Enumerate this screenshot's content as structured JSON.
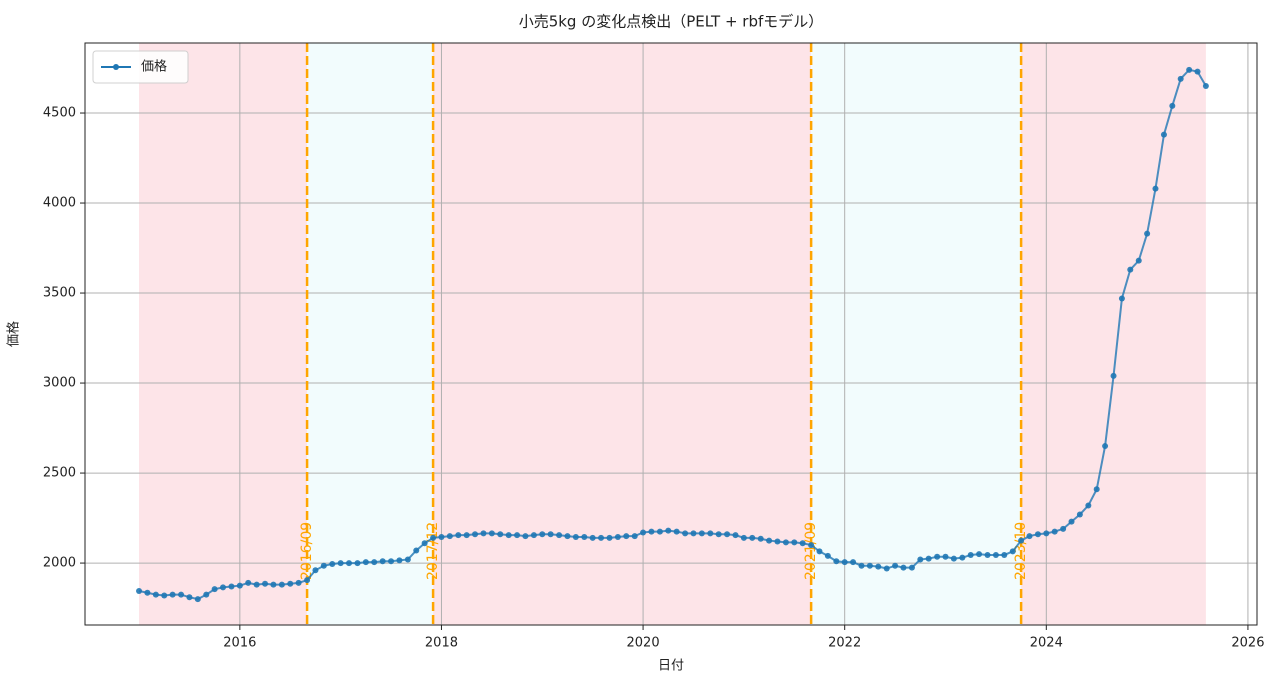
{
  "chart_data": {
    "type": "line",
    "title": "小売5kg の変化点検出（PELT + rbfモデル）",
    "x_label": "日付",
    "y_label": "価格",
    "x": [
      2015,
      2015.083,
      2015.167,
      2015.25,
      2015.333,
      2015.417,
      2015.5,
      2015.583,
      2015.667,
      2015.75,
      2015.833,
      2015.917,
      2016,
      2016.083,
      2016.167,
      2016.25,
      2016.333,
      2016.417,
      2016.5,
      2016.583,
      2016.667,
      2016.75,
      2016.833,
      2016.917,
      2017,
      2017.083,
      2017.167,
      2017.25,
      2017.333,
      2017.417,
      2017.5,
      2017.583,
      2017.667,
      2017.75,
      2017.833,
      2017.917,
      2018,
      2018.083,
      2018.167,
      2018.25,
      2018.333,
      2018.417,
      2018.5,
      2018.583,
      2018.667,
      2018.75,
      2018.833,
      2018.917,
      2019,
      2019.083,
      2019.167,
      2019.25,
      2019.333,
      2019.417,
      2019.5,
      2019.583,
      2019.667,
      2019.75,
      2019.833,
      2019.917,
      2020,
      2020.083,
      2020.167,
      2020.25,
      2020.333,
      2020.417,
      2020.5,
      2020.583,
      2020.667,
      2020.75,
      2020.833,
      2020.917,
      2021,
      2021.083,
      2021.167,
      2021.25,
      2021.333,
      2021.417,
      2021.5,
      2021.583,
      2021.667,
      2021.75,
      2021.833,
      2021.917,
      2022,
      2022.083,
      2022.167,
      2022.25,
      2022.333,
      2022.417,
      2022.5,
      2022.583,
      2022.667,
      2022.75,
      2022.833,
      2022.917,
      2023,
      2023.083,
      2023.167,
      2023.25,
      2023.333,
      2023.417,
      2023.5,
      2023.583,
      2023.667,
      2023.75,
      2023.833,
      2023.917,
      2024,
      2024.083,
      2024.167,
      2024.25,
      2024.333,
      2024.417,
      2024.5,
      2024.583,
      2024.667,
      2024.75,
      2024.833,
      2024.917,
      2025,
      2025.083,
      2025.167,
      2025.25,
      2025.333,
      2025.417,
      2025.5,
      2025.583
    ],
    "series": [
      {
        "name": "価格",
        "color": "#1f77b4",
        "values": [
          1845,
          1835,
          1825,
          1820,
          1825,
          1825,
          1810,
          1800,
          1825,
          1855,
          1865,
          1870,
          1875,
          1890,
          1880,
          1885,
          1880,
          1880,
          1885,
          1890,
          1905,
          1960,
          1985,
          1995,
          2000,
          2000,
          2000,
          2005,
          2005,
          2010,
          2010,
          2015,
          2020,
          2070,
          2110,
          2140,
          2145,
          2150,
          2155,
          2155,
          2160,
          2165,
          2165,
          2160,
          2155,
          2155,
          2150,
          2155,
          2160,
          2160,
          2155,
          2150,
          2145,
          2145,
          2140,
          2140,
          2140,
          2145,
          2150,
          2150,
          2170,
          2175,
          2175,
          2180,
          2175,
          2165,
          2165,
          2165,
          2165,
          2160,
          2160,
          2155,
          2140,
          2140,
          2135,
          2125,
          2120,
          2115,
          2115,
          2110,
          2100,
          2065,
          2040,
          2010,
          2005,
          2005,
          1985,
          1985,
          1980,
          1970,
          1985,
          1975,
          1975,
          2020,
          2025,
          2035,
          2035,
          2025,
          2030,
          2045,
          2050,
          2045,
          2045,
          2045,
          2065,
          2125,
          2150,
          2160,
          2165,
          2175,
          2190,
          2230,
          2270,
          2320,
          2410,
          2650,
          3040,
          3470,
          3630,
          3680,
          3830,
          4080,
          4380,
          4540,
          4690,
          4740,
          4730,
          4650
        ]
      }
    ],
    "change_points": [
      {
        "value": 2016.667,
        "label": "2016/09"
      },
      {
        "value": 2017.917,
        "label": "2017/12"
      },
      {
        "value": 2021.667,
        "label": "2021/09"
      },
      {
        "value": 2023.75,
        "label": "2023/10"
      }
    ],
    "change_point_color": "#ffa500",
    "segments": [
      {
        "start": 2015,
        "end": 2016.667,
        "color": "#fde4e8"
      },
      {
        "start": 2016.667,
        "end": 2017.917,
        "color": "#f2fcfd"
      },
      {
        "start": 2017.917,
        "end": 2021.667,
        "color": "#fde4e8"
      },
      {
        "start": 2021.667,
        "end": 2023.75,
        "color": "#f2fcfd"
      },
      {
        "start": 2023.75,
        "end": 2025.583,
        "color": "#fde4e8"
      }
    ],
    "xlim": [
      2014.464,
      2026.09
    ],
    "ylim": [
      1656,
      4889
    ],
    "xticks": [
      2016,
      2018,
      2020,
      2022,
      2024,
      2026
    ],
    "yticks": [
      2000,
      2500,
      3000,
      3500,
      4000,
      4500
    ],
    "grid": true,
    "legend": "upper left"
  }
}
